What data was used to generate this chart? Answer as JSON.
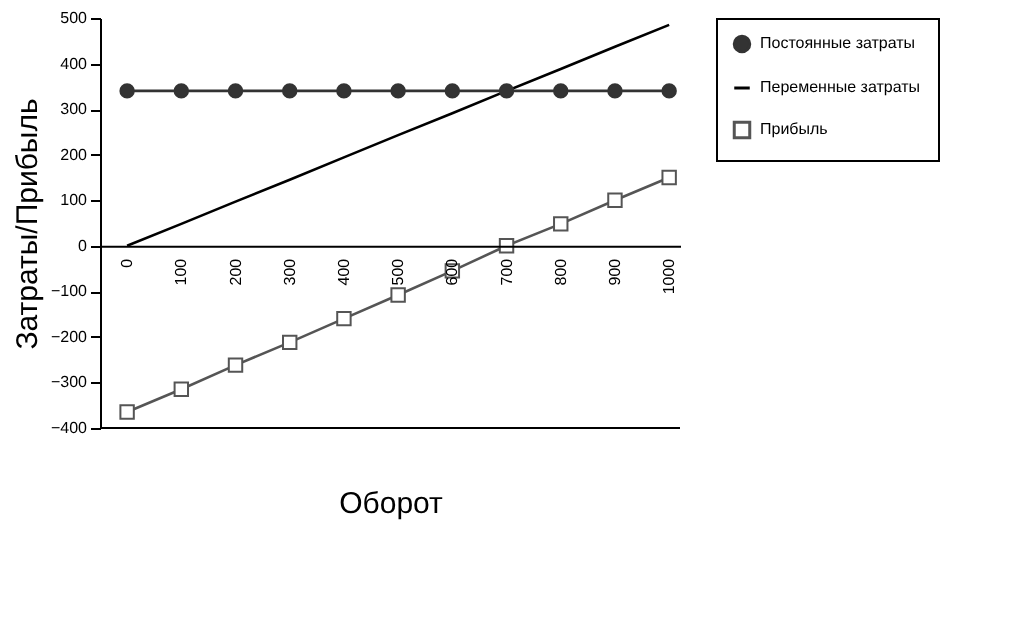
{
  "chart_data": {
    "type": "line",
    "xlabel": "Оборот",
    "ylabel": "Затраты/Прибыль",
    "x": [
      0,
      100,
      200,
      300,
      400,
      500,
      600,
      700,
      800,
      900,
      1000
    ],
    "series": [
      {
        "name": "Постоянные затраты",
        "color": "#333333",
        "marker": "circle",
        "values": [
          340,
          340,
          340,
          340,
          340,
          340,
          340,
          340,
          340,
          340,
          340
        ]
      },
      {
        "name": "Переменные затраты",
        "color": "#000000",
        "marker": "none",
        "values": [
          0,
          48,
          97,
          145,
          194,
          243,
          291,
          340,
          388,
          437,
          485
        ]
      },
      {
        "name": "Прибыль",
        "color": "#555555",
        "marker": "square",
        "values": [
          -365,
          -315,
          -262,
          -212,
          -160,
          -108,
          -55,
          0,
          48,
          100,
          150
        ]
      }
    ],
    "xlim": [
      -50,
      1020
    ],
    "xticks": [
      0,
      100,
      200,
      300,
      400,
      500,
      600,
      700,
      800,
      900,
      1000
    ],
    "ylim": [
      -400,
      500
    ],
    "yticks": [
      -400,
      -300,
      -200,
      -100,
      0,
      100,
      200,
      300,
      400,
      500
    ],
    "grid": false,
    "legend": "right"
  }
}
